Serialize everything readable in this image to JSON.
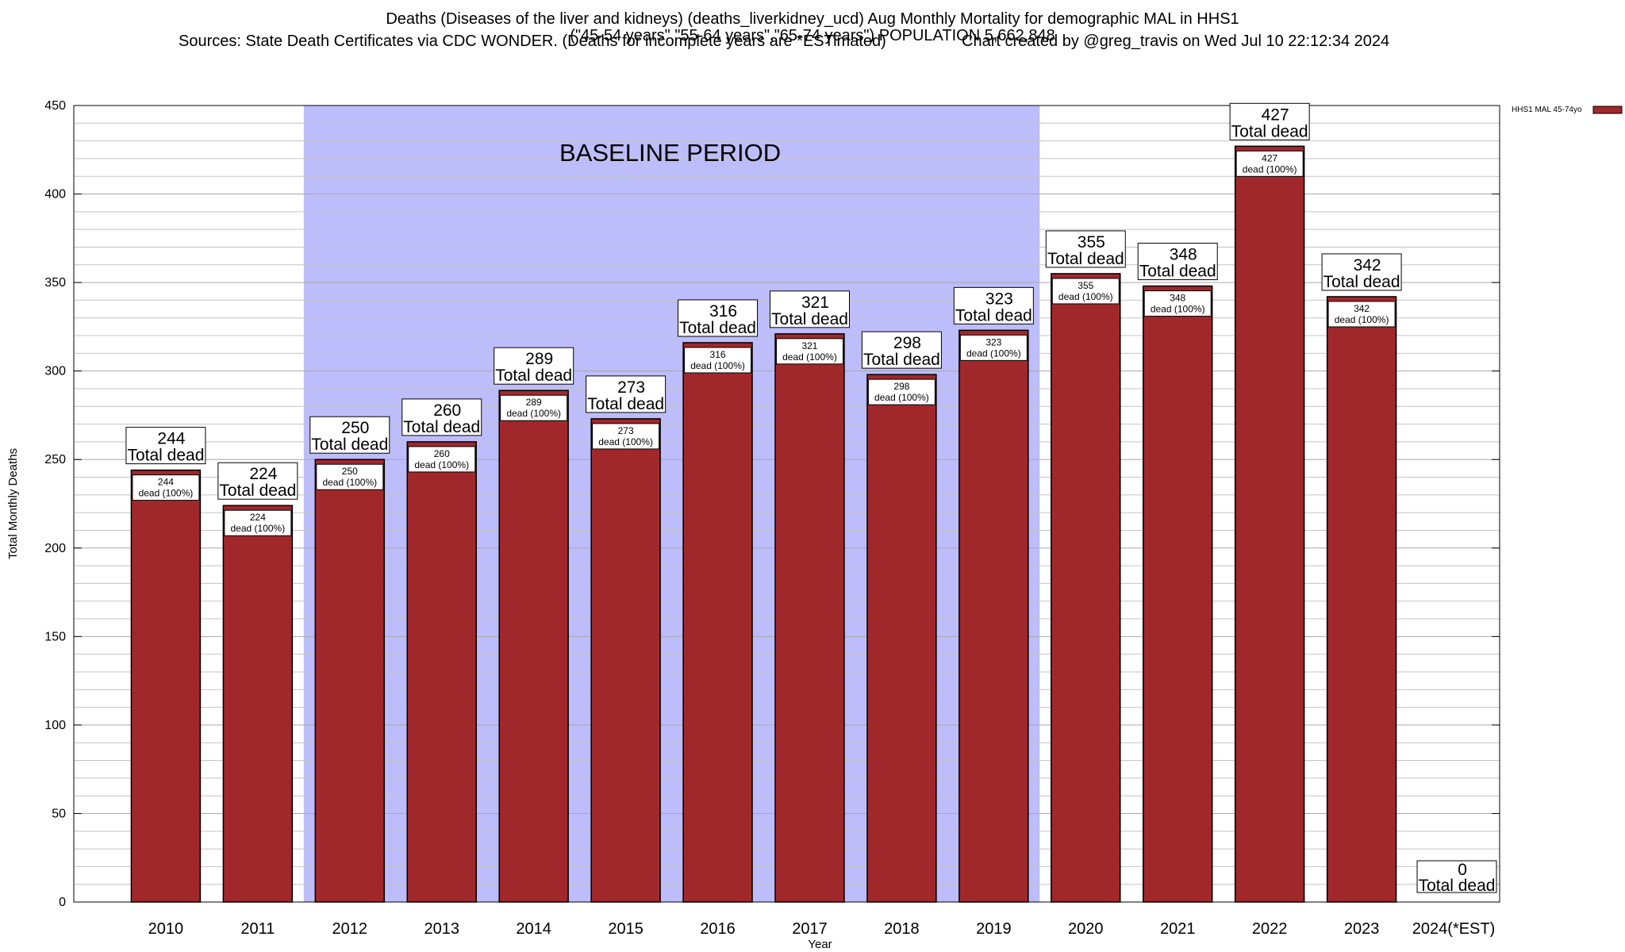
{
  "chart_data": {
    "type": "bar",
    "title": "Deaths (Diseases of the liver and kidneys) (deaths_liverkidney_ucd) Aug Monthly Mortality for demographic MAL in HHS1",
    "subtitle": "(\"45-54 years\",\"55-64 years\",\"65-74 years\") POPULATION 5,662,848",
    "sources": "Sources: State Death Certificates via CDC WONDER. (Deaths for incomplete years are *ESTimated)",
    "credit": "Chart created by @greg_travis on Wed Jul 10 22:12:34 2024",
    "xlabel": "Year",
    "ylabel": "Total Monthly Deaths",
    "ylim": [
      0,
      450
    ],
    "yticks": [
      0,
      50,
      100,
      150,
      200,
      250,
      300,
      350,
      400,
      450
    ],
    "categories": [
      "2010",
      "2011",
      "2012",
      "2013",
      "2014",
      "2015",
      "2016",
      "2017",
      "2018",
      "2019",
      "2020",
      "2021",
      "2022",
      "2023",
      "2024(*EST)"
    ],
    "series": [
      {
        "name": "HHS1 MAL 45-74yo",
        "values": [
          244,
          224,
          250,
          260,
          289,
          273,
          316,
          321,
          298,
          323,
          355,
          348,
          427,
          342,
          0
        ]
      }
    ],
    "total_label_suffix": "Total dead",
    "inner_label_suffix": "dead (100%)",
    "baseline": {
      "label": "BASELINE PERIOD",
      "from": "2012",
      "to": "2019"
    },
    "legend_position": "top-right",
    "grid": true,
    "colors": {
      "bar": "#a0282b",
      "baseline_band": "#bdbdfb"
    }
  }
}
